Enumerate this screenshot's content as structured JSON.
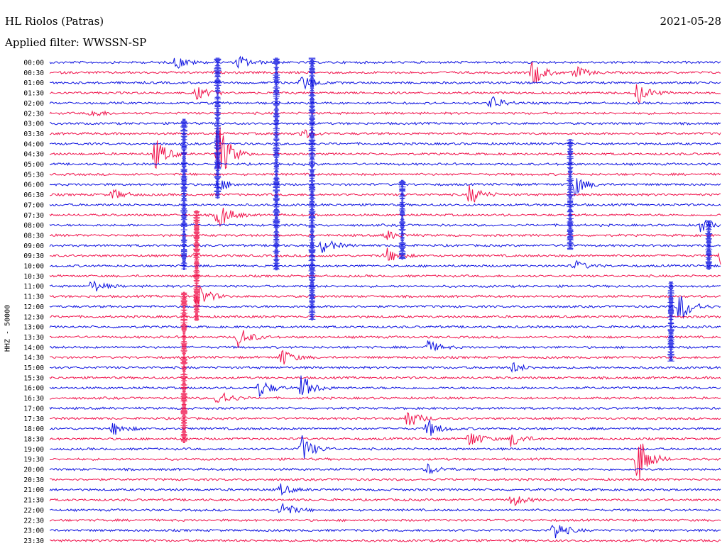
{
  "header": {
    "station": "HL Riolos (Patras)",
    "filter": "Applied filter: WWSSN-SP",
    "date": "2021-05-28"
  },
  "chart_data": {
    "type": "line",
    "title": "HL Riolos (Patras)",
    "ylabel": "HHZ - 50000",
    "row_labels": [
      "00:00",
      "00:30",
      "01:00",
      "01:30",
      "02:00",
      "02:30",
      "03:00",
      "03:30",
      "04:00",
      "04:30",
      "05:00",
      "05:30",
      "06:00",
      "06:30",
      "07:00",
      "07:30",
      "08:00",
      "08:30",
      "09:00",
      "09:30",
      "10:00",
      "10:30",
      "11:00",
      "11:30",
      "12:00",
      "12:30",
      "13:00",
      "13:30",
      "14:00",
      "14:30",
      "15:00",
      "15:30",
      "16:00",
      "16:30",
      "17:00",
      "17:30",
      "18:00",
      "18:30",
      "19:00",
      "19:30",
      "20:00",
      "20:30",
      "21:00",
      "21:30",
      "22:00",
      "22:30",
      "23:00",
      "23:30"
    ],
    "colors": {
      "even": "#0b10e0",
      "odd": "#f0104a"
    },
    "events": [
      {
        "row": 0,
        "minute": 6,
        "amp": 1.0
      },
      {
        "row": 0,
        "minute": 9,
        "amp": 1.0
      },
      {
        "row": 1,
        "minute": 23,
        "amp": 2.0
      },
      {
        "row": 1,
        "minute": 25,
        "amp": 1.0
      },
      {
        "row": 2,
        "minute": 12,
        "amp": 1.2
      },
      {
        "row": 3,
        "minute": 7,
        "amp": 1.0
      },
      {
        "row": 3,
        "minute": 28,
        "amp": 1.6
      },
      {
        "row": 4,
        "minute": 21,
        "amp": 1.2
      },
      {
        "row": 5,
        "minute": 2,
        "amp": 0.6
      },
      {
        "row": 7,
        "minute": 12,
        "amp": 0.8
      },
      {
        "row": 9,
        "minute": 5,
        "amp": 2.4
      },
      {
        "row": 9,
        "minute": 8,
        "amp": 5.0
      },
      {
        "row": 12,
        "minute": 8,
        "amp": 1.0
      },
      {
        "row": 12,
        "minute": 25,
        "amp": 1.6
      },
      {
        "row": 13,
        "minute": 3,
        "amp": 0.8
      },
      {
        "row": 13,
        "minute": 20,
        "amp": 1.6
      },
      {
        "row": 15,
        "minute": 8,
        "amp": 2.2
      },
      {
        "row": 16,
        "minute": 31,
        "amp": 1.0
      },
      {
        "row": 17,
        "minute": 16,
        "amp": 0.8
      },
      {
        "row": 18,
        "minute": 13,
        "amp": 1.2
      },
      {
        "row": 19,
        "minute": 16,
        "amp": 1.2
      },
      {
        "row": 19,
        "minute": 32,
        "amp": 1.8
      },
      {
        "row": 20,
        "minute": 25,
        "amp": 0.8
      },
      {
        "row": 22,
        "minute": 2,
        "amp": 1.0
      },
      {
        "row": 23,
        "minute": 7,
        "amp": 2.0
      },
      {
        "row": 24,
        "minute": 30,
        "amp": 2.6
      },
      {
        "row": 27,
        "minute": 9,
        "amp": 1.6
      },
      {
        "row": 28,
        "minute": 18,
        "amp": 1.0
      },
      {
        "row": 29,
        "minute": 11,
        "amp": 1.4
      },
      {
        "row": 30,
        "minute": 22,
        "amp": 0.8
      },
      {
        "row": 32,
        "minute": 10,
        "amp": 1.4
      },
      {
        "row": 32,
        "minute": 12,
        "amp": 2.0
      },
      {
        "row": 33,
        "minute": 8,
        "amp": 1.4
      },
      {
        "row": 35,
        "minute": 17,
        "amp": 1.6
      },
      {
        "row": 36,
        "minute": 3,
        "amp": 1.0
      },
      {
        "row": 36,
        "minute": 18,
        "amp": 1.4
      },
      {
        "row": 37,
        "minute": 20,
        "amp": 1.4
      },
      {
        "row": 37,
        "minute": 22,
        "amp": 1.2
      },
      {
        "row": 38,
        "minute": 12,
        "amp": 2.0
      },
      {
        "row": 39,
        "minute": 28,
        "amp": 4.0
      },
      {
        "row": 40,
        "minute": 18,
        "amp": 0.8
      },
      {
        "row": 42,
        "minute": 11,
        "amp": 0.8
      },
      {
        "row": 43,
        "minute": 22,
        "amp": 1.0
      },
      {
        "row": 44,
        "minute": 11,
        "amp": 1.4
      },
      {
        "row": 46,
        "minute": 24,
        "amp": 1.6
      }
    ],
    "spikes": [
      {
        "rowStart": 0,
        "rowEnd": 13,
        "minute": 8.0
      },
      {
        "rowStart": 0,
        "rowEnd": 20,
        "minute": 10.8
      },
      {
        "rowStart": 0,
        "rowEnd": 25,
        "minute": 12.5
      },
      {
        "rowStart": 6,
        "rowEnd": 20,
        "minute": 6.4
      },
      {
        "rowStart": 12,
        "rowEnd": 19,
        "minute": 16.8
      },
      {
        "rowStart": 15,
        "rowEnd": 25,
        "minute": 7.0
      },
      {
        "rowStart": 23,
        "rowEnd": 37,
        "minute": 6.4
      },
      {
        "rowStart": 8,
        "rowEnd": 18,
        "minute": 24.8
      },
      {
        "rowStart": 22,
        "rowEnd": 29,
        "minute": 29.6
      },
      {
        "rowStart": 16,
        "rowEnd": 20,
        "minute": 31.4
      }
    ]
  }
}
